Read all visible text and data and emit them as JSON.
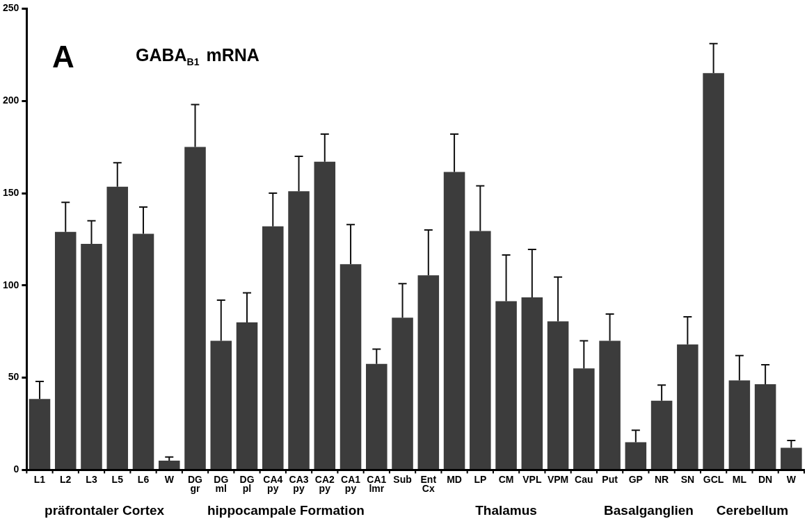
{
  "chart_data": {
    "type": "bar",
    "title": "GABA$_{B1}$ mRNA",
    "categories": [
      "L1",
      "L2",
      "L3",
      "L5",
      "L6",
      "W",
      "DG\ngr",
      "DG\nml",
      "DG\npl",
      "CA4\npy",
      "CA3\npy",
      "CA2\npy",
      "CA1\npy",
      "CA1\nlmr",
      "Sub",
      "Ent\nCx",
      "MD",
      "LP",
      "CM",
      "VPL",
      "VPM",
      "Cau",
      "Put",
      "GP",
      "NR",
      "SN",
      "GCL",
      "ML",
      "DN",
      "W"
    ],
    "values": [
      38.5,
      129,
      122.5,
      153.5,
      128,
      5,
      175,
      70,
      80,
      132,
      151,
      167,
      111.5,
      57.5,
      82.5,
      105.5,
      161.5,
      129.5,
      91.5,
      93.5,
      80.5,
      55,
      70,
      15,
      37.5,
      68,
      215,
      48.5,
      46.5,
      12
    ],
    "errors": [
      [
        38.5,
        48
      ],
      [
        129,
        145
      ],
      [
        122.5,
        135
      ],
      [
        153.5,
        166.5
      ],
      [
        128,
        142.5
      ],
      [
        5,
        7
      ],
      [
        175,
        198
      ],
      [
        70,
        92
      ],
      [
        80,
        96
      ],
      [
        132,
        150
      ],
      [
        151,
        170
      ],
      [
        167,
        182
      ],
      [
        111.5,
        133
      ],
      [
        57.5,
        65.5
      ],
      [
        82.5,
        101
      ],
      [
        105.5,
        130
      ],
      [
        161.5,
        182
      ],
      [
        129.5,
        154
      ],
      [
        91.5,
        116.5
      ],
      [
        93.5,
        119.5
      ],
      [
        80.5,
        104.5
      ],
      [
        55,
        70
      ],
      [
        70,
        84.5
      ],
      [
        15,
        21.5
      ],
      [
        37.5,
        46
      ],
      [
        68,
        83
      ],
      [
        215,
        231
      ],
      [
        48.5,
        62
      ],
      [
        46.5,
        57
      ],
      [
        12,
        16
      ]
    ],
    "color": "#3c3c3c",
    "ylim": [
      0,
      250
    ],
    "yticks": [
      0,
      50,
      100,
      150,
      200,
      250
    ],
    "grid": false,
    "legend": false,
    "annotations": [
      "A",
      "präfrontaler Cortex",
      "hippocampale Formation",
      "Thalamus",
      "Basalganglien",
      "Cerebellum"
    ]
  }
}
